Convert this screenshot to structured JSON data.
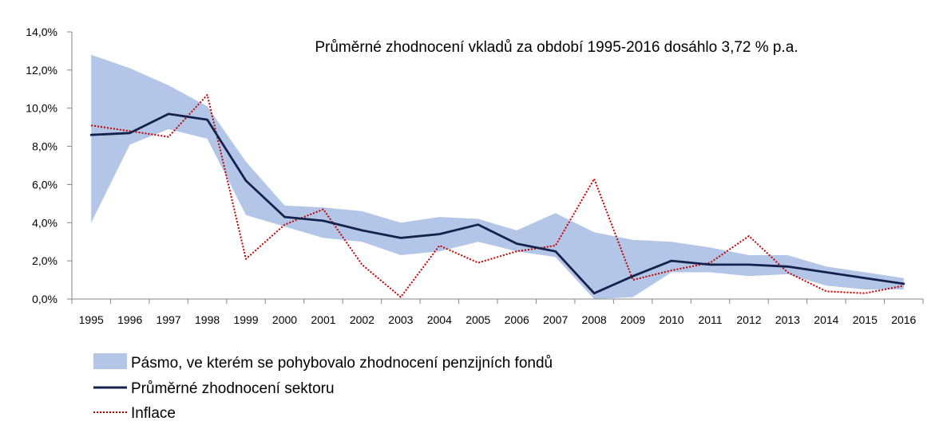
{
  "chart_data": {
    "type": "line",
    "annotation": "Průměrné zhodnocení vkladů za období 1995-2016 dosáhlo 3,72 % p.a.",
    "categories": [
      "1995",
      "1996",
      "1997",
      "1998",
      "1999",
      "2000",
      "2001",
      "2002",
      "2003",
      "2004",
      "2005",
      "2006",
      "2007",
      "2008",
      "2009",
      "2010",
      "2011",
      "2012",
      "2013",
      "2014",
      "2015",
      "2016"
    ],
    "y_ticks": [
      "0,0%",
      "2,0%",
      "4,0%",
      "6,0%",
      "8,0%",
      "10,0%",
      "12,0%",
      "14,0%"
    ],
    "ylim": [
      0,
      14
    ],
    "grid": false,
    "legend_position": "bottom-left",
    "band": {
      "name": "Pásmo, ve kterém se pohybovalo zhodnocení penzijních fondů",
      "color": "#b4c6e7",
      "upper": [
        12.8,
        12.1,
        11.2,
        10.1,
        7.2,
        4.9,
        4.8,
        4.6,
        4.0,
        4.3,
        4.2,
        3.6,
        4.5,
        3.5,
        3.1,
        3.0,
        2.7,
        2.3,
        2.3,
        1.7,
        1.4,
        1.1
      ],
      "lower": [
        4.0,
        8.1,
        8.9,
        8.4,
        4.4,
        3.8,
        3.2,
        3.0,
        2.3,
        2.5,
        3.0,
        2.5,
        2.2,
        0.0,
        0.1,
        1.4,
        1.4,
        1.2,
        1.3,
        0.7,
        0.5,
        0.5
      ]
    },
    "series": [
      {
        "name": "Průměrné zhodnocení sektoru",
        "color": "#14214d",
        "style": "solid",
        "values": [
          8.6,
          8.7,
          9.7,
          9.4,
          6.2,
          4.3,
          4.1,
          3.6,
          3.2,
          3.4,
          3.9,
          2.9,
          2.5,
          0.3,
          1.2,
          2.0,
          1.8,
          1.8,
          1.7,
          1.4,
          1.1,
          0.8
        ]
      },
      {
        "name": "Inflace",
        "color": "#c00000",
        "style": "dotted",
        "values": [
          9.1,
          8.8,
          8.5,
          10.7,
          2.1,
          3.9,
          4.7,
          1.8,
          0.1,
          2.8,
          1.9,
          2.5,
          2.8,
          6.3,
          1.0,
          1.5,
          1.9,
          3.3,
          1.4,
          0.4,
          0.3,
          0.7
        ]
      }
    ]
  }
}
